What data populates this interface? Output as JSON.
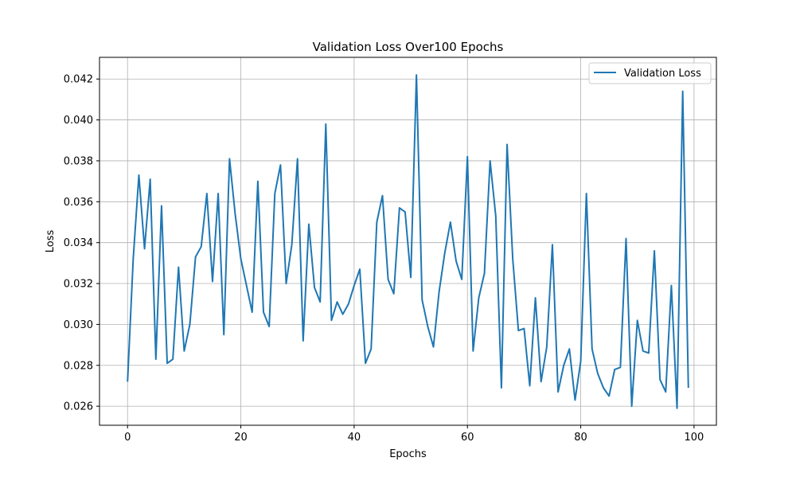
{
  "chart_data": {
    "type": "line",
    "title": "Validation Loss Over100 Epochs",
    "xlabel": "Epochs",
    "ylabel": "Loss",
    "xlim": [
      -4.95,
      103.95
    ],
    "ylim": [
      0.02507,
      0.04306
    ],
    "x_ticks": [
      0,
      20,
      40,
      60,
      80,
      100
    ],
    "x_tick_labels": [
      "0",
      "20",
      "40",
      "60",
      "80",
      "100"
    ],
    "y_ticks": [
      0.026,
      0.028,
      0.03,
      0.032,
      0.034,
      0.036,
      0.038,
      0.04,
      0.042
    ],
    "y_tick_labels": [
      "0.026",
      "0.028",
      "0.030",
      "0.032",
      "0.034",
      "0.036",
      "0.038",
      "0.040",
      "0.042"
    ],
    "grid": true,
    "legend_position": "top-right",
    "series": [
      {
        "name": "Validation Loss",
        "color": "#1f77b4",
        "x": [
          0,
          1,
          2,
          3,
          4,
          5,
          6,
          7,
          8,
          9,
          10,
          11,
          12,
          13,
          14,
          15,
          16,
          17,
          18,
          19,
          20,
          21,
          22,
          23,
          24,
          25,
          26,
          27,
          28,
          29,
          30,
          31,
          32,
          33,
          34,
          35,
          36,
          37,
          38,
          39,
          40,
          41,
          42,
          43,
          44,
          45,
          46,
          47,
          48,
          49,
          50,
          51,
          52,
          53,
          54,
          55,
          56,
          57,
          58,
          59,
          60,
          61,
          62,
          63,
          64,
          65,
          66,
          67,
          68,
          69,
          70,
          71,
          72,
          73,
          74,
          75,
          76,
          77,
          78,
          79,
          80,
          81,
          82,
          83,
          84,
          85,
          86,
          87,
          88,
          89,
          90,
          91,
          92,
          93,
          94,
          95,
          96,
          97,
          98,
          99
        ],
        "values": [
          0.0272,
          0.0332,
          0.0373,
          0.0337,
          0.0371,
          0.0283,
          0.0358,
          0.0281,
          0.0283,
          0.0328,
          0.0287,
          0.03,
          0.0333,
          0.0338,
          0.0364,
          0.0321,
          0.0364,
          0.0295,
          0.0381,
          0.0354,
          0.0332,
          0.0319,
          0.0306,
          0.037,
          0.0306,
          0.0299,
          0.0364,
          0.0378,
          0.032,
          0.0339,
          0.0381,
          0.0292,
          0.0349,
          0.0318,
          0.0311,
          0.0398,
          0.0302,
          0.0311,
          0.0305,
          0.031,
          0.0319,
          0.0327,
          0.0281,
          0.0288,
          0.035,
          0.0363,
          0.0322,
          0.0315,
          0.0357,
          0.0355,
          0.0323,
          0.0422,
          0.0312,
          0.0299,
          0.0289,
          0.0316,
          0.0335,
          0.035,
          0.0331,
          0.0322,
          0.0382,
          0.0287,
          0.0313,
          0.0325,
          0.038,
          0.0353,
          0.0269,
          0.0388,
          0.0332,
          0.0297,
          0.0298,
          0.027,
          0.0313,
          0.0272,
          0.0289,
          0.0339,
          0.0267,
          0.028,
          0.0288,
          0.0263,
          0.0282,
          0.0364,
          0.0288,
          0.0276,
          0.0269,
          0.0265,
          0.0278,
          0.0279,
          0.0342,
          0.026,
          0.0302,
          0.0287,
          0.0286,
          0.0336,
          0.0273,
          0.0267,
          0.0319,
          0.0259,
          0.0414,
          0.0269
        ]
      }
    ]
  }
}
